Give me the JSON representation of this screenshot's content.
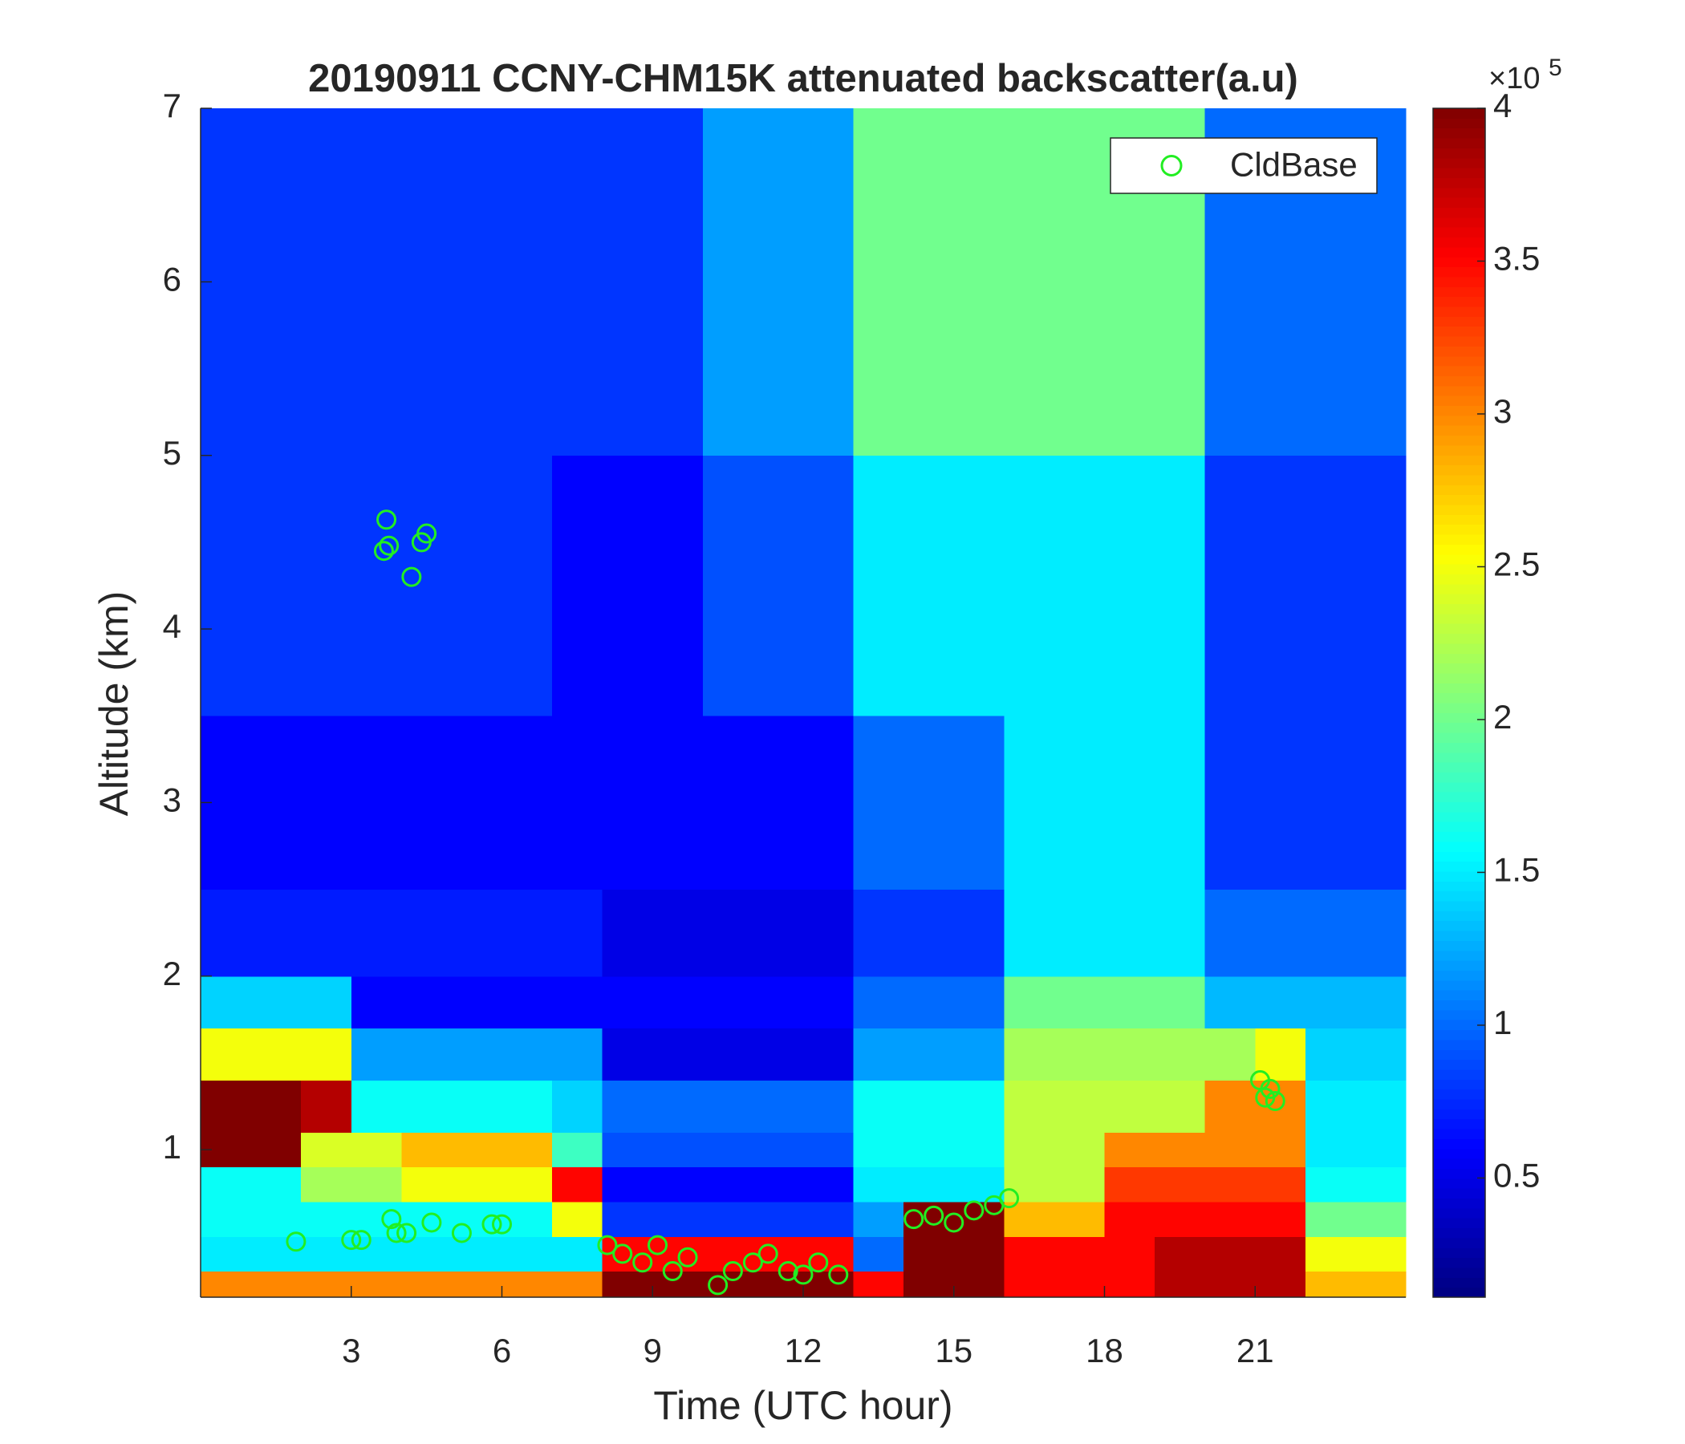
{
  "chart_data": {
    "type": "heatmap",
    "title": "20190911 CCNY-CHM15K attenuated backscatter(a.u)",
    "xlabel": "Time (UTC hour)",
    "ylabel": "Altitude (km)",
    "xlim": [
      0,
      24
    ],
    "xticks": [
      3,
      6,
      9,
      12,
      15,
      18,
      21
    ],
    "ylim": [
      0.15,
      7
    ],
    "yticks": [
      1,
      2,
      3,
      4,
      5,
      6,
      7
    ],
    "colormap": "jet",
    "clim": [
      0.11,
      4
    ],
    "cticks": [
      0.5,
      1,
      1.5,
      2,
      2.5,
      3,
      3.5,
      4
    ],
    "cbar_multiplier": "×10",
    "cbar_exponent": "5",
    "x_edges": [
      0,
      1,
      2,
      3,
      4,
      5,
      6,
      7,
      8,
      9,
      10,
      11,
      12,
      13,
      14,
      15,
      16,
      17,
      18,
      19,
      20,
      21,
      22,
      23,
      24
    ],
    "y_edges": [
      0.15,
      0.3,
      0.5,
      0.7,
      0.9,
      1.1,
      1.4,
      1.7,
      2.0,
      2.5,
      3.5,
      5,
      7
    ],
    "z": [
      [
        3,
        3,
        3,
        3,
        3,
        3,
        3,
        3,
        4,
        4,
        4,
        4,
        4,
        3.5,
        4,
        4,
        3.5,
        3.5,
        3.5,
        3.8,
        3.8,
        3.8,
        2.8,
        2.8
      ],
      [
        1.5,
        1.5,
        1.5,
        1.5,
        1.5,
        1.5,
        1.5,
        1.5,
        3.5,
        3.5,
        3.5,
        3.5,
        3.5,
        1.0,
        4,
        4,
        3.5,
        3.5,
        3.5,
        3.8,
        3.8,
        3.8,
        2.5,
        2.5
      ],
      [
        1.6,
        1.6,
        1.6,
        1.6,
        1.6,
        1.6,
        1.6,
        2.5,
        0.8,
        0.8,
        0.8,
        0.8,
        0.8,
        1.2,
        4,
        4,
        2.8,
        2.8,
        3.5,
        3.5,
        3.5,
        3.5,
        2,
        2
      ],
      [
        1.6,
        1.6,
        2.2,
        2.2,
        2.5,
        2.5,
        2.5,
        3.5,
        0.6,
        0.6,
        0.6,
        0.6,
        0.6,
        1.5,
        1.5,
        1.5,
        2.3,
        2.3,
        3.3,
        3.3,
        3.3,
        3.3,
        1.6,
        1.6
      ],
      [
        4,
        4,
        2.4,
        2.4,
        2.8,
        2.8,
        2.8,
        1.8,
        0.9,
        0.9,
        0.9,
        0.9,
        0.9,
        1.6,
        1.6,
        1.6,
        2.3,
        2.3,
        3,
        3,
        3,
        3,
        1.5,
        1.5
      ],
      [
        4,
        4,
        3.8,
        1.6,
        1.6,
        1.6,
        1.6,
        1.4,
        1.0,
        1.0,
        1.0,
        1.0,
        1.0,
        1.6,
        1.6,
        1.6,
        2.3,
        2.3,
        2.3,
        2.3,
        3,
        3,
        1.5,
        1.5
      ],
      [
        2.5,
        2.5,
        2.5,
        1.2,
        1.2,
        1.2,
        1.2,
        1.2,
        0.5,
        0.5,
        0.5,
        0.5,
        0.5,
        1.2,
        1.2,
        1.2,
        2.2,
        2.2,
        2.2,
        2.2,
        2.2,
        2.5,
        1.4,
        1.4
      ],
      [
        1.4,
        1.4,
        1.4,
        0.6,
        0.6,
        0.6,
        0.6,
        0.6,
        0.6,
        0.6,
        0.6,
        0.6,
        0.6,
        1.0,
        1.0,
        1.0,
        2.0,
        2.0,
        2.0,
        2.0,
        1.3,
        1.3,
        1.3,
        1.3
      ],
      [
        0.7,
        0.7,
        0.7,
        0.7,
        0.7,
        0.7,
        0.7,
        0.7,
        0.5,
        0.5,
        0.5,
        0.5,
        0.5,
        0.8,
        0.8,
        0.8,
        1.5,
        1.5,
        1.5,
        1.5,
        1.0,
        1.0,
        1.0,
        1.0
      ],
      [
        0.6,
        0.6,
        0.6,
        0.6,
        0.6,
        0.6,
        0.6,
        0.6,
        0.6,
        0.6,
        0.6,
        0.6,
        0.6,
        1.0,
        1.0,
        1.0,
        1.5,
        1.5,
        1.5,
        1.5,
        0.8,
        0.8,
        0.8,
        0.8
      ],
      [
        0.8,
        0.8,
        0.8,
        0.8,
        0.8,
        0.8,
        0.8,
        0.6,
        0.6,
        0.6,
        0.9,
        0.9,
        0.9,
        1.5,
        1.5,
        1.5,
        1.5,
        1.5,
        1.5,
        1.5,
        0.8,
        0.8,
        0.8,
        0.8
      ],
      [
        0.8,
        0.8,
        0.8,
        0.8,
        0.8,
        0.8,
        0.8,
        0.8,
        0.8,
        0.8,
        1.2,
        1.2,
        1.2,
        2.0,
        2.0,
        2.0,
        2.0,
        2.0,
        2.0,
        2.0,
        1.0,
        1.0,
        1.0,
        1.0
      ]
    ],
    "legend": "upper right",
    "series": [
      {
        "name": "CldBase",
        "type": "scatter",
        "marker": "circle",
        "color": "#22ee22",
        "x": [
          1.9,
          3.0,
          3.2,
          3.8,
          3.9,
          4.1,
          4.6,
          5.2,
          5.8,
          6.0,
          3.7,
          3.65,
          3.75,
          4.2,
          4.4,
          4.5,
          8.1,
          8.4,
          8.8,
          9.1,
          9.4,
          9.7,
          10.3,
          10.6,
          11.0,
          11.3,
          11.7,
          12.0,
          12.3,
          12.7,
          14.2,
          14.6,
          15.0,
          15.4,
          15.8,
          16.1,
          21.1,
          21.3,
          21.2,
          21.4
        ],
        "y": [
          0.47,
          0.48,
          0.48,
          0.6,
          0.52,
          0.52,
          0.58,
          0.52,
          0.57,
          0.57,
          4.63,
          4.45,
          4.48,
          4.3,
          4.5,
          4.55,
          0.45,
          0.4,
          0.35,
          0.45,
          0.3,
          0.38,
          0.22,
          0.3,
          0.35,
          0.4,
          0.3,
          0.28,
          0.35,
          0.28,
          0.6,
          0.62,
          0.58,
          0.65,
          0.68,
          0.72,
          1.4,
          1.35,
          1.3,
          1.28
        ]
      }
    ]
  }
}
